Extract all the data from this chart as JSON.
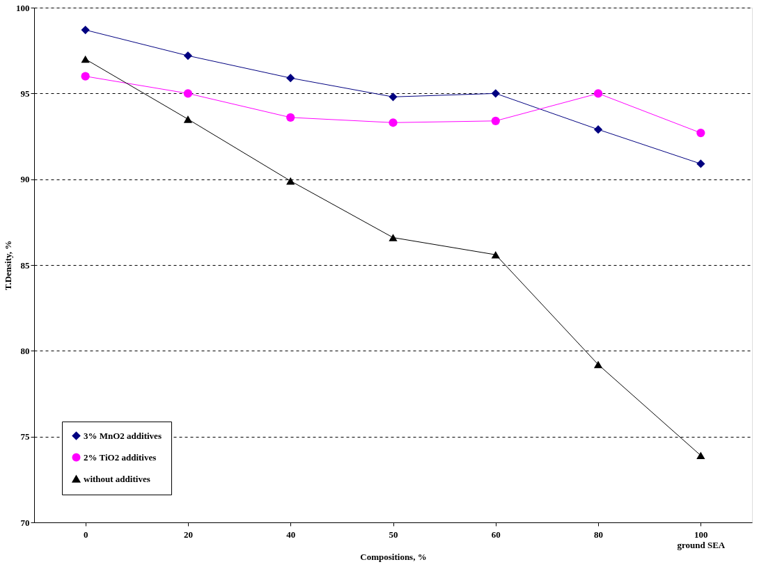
{
  "chart_data": {
    "type": "line",
    "xlabel": "Compositions, %",
    "ylabel": "T.Density, %",
    "categories": [
      "0",
      "20",
      "40",
      "50",
      "60",
      "80",
      "100\nground SEA"
    ],
    "series": [
      {
        "name": "3% MnO2 additives",
        "color": "#000080",
        "marker": "diamond",
        "values": [
          98.7,
          97.2,
          95.9,
          94.8,
          95.0,
          92.9,
          90.9
        ]
      },
      {
        "name": "2% TiO2 additives",
        "color": "#ff00ff",
        "marker": "circle",
        "values": [
          96.0,
          95.0,
          93.6,
          93.3,
          93.4,
          95.0,
          92.7
        ]
      },
      {
        "name": "without additives",
        "color": "#000000",
        "marker": "triangle",
        "values": [
          97.0,
          93.5,
          89.9,
          86.6,
          85.6,
          79.2,
          73.9
        ]
      }
    ],
    "ylim": [
      70,
      100
    ],
    "yticks": [
      70,
      75,
      80,
      85,
      90,
      95,
      100
    ],
    "grid": "y",
    "legend": "bottom left",
    "line_style": "solid"
  }
}
